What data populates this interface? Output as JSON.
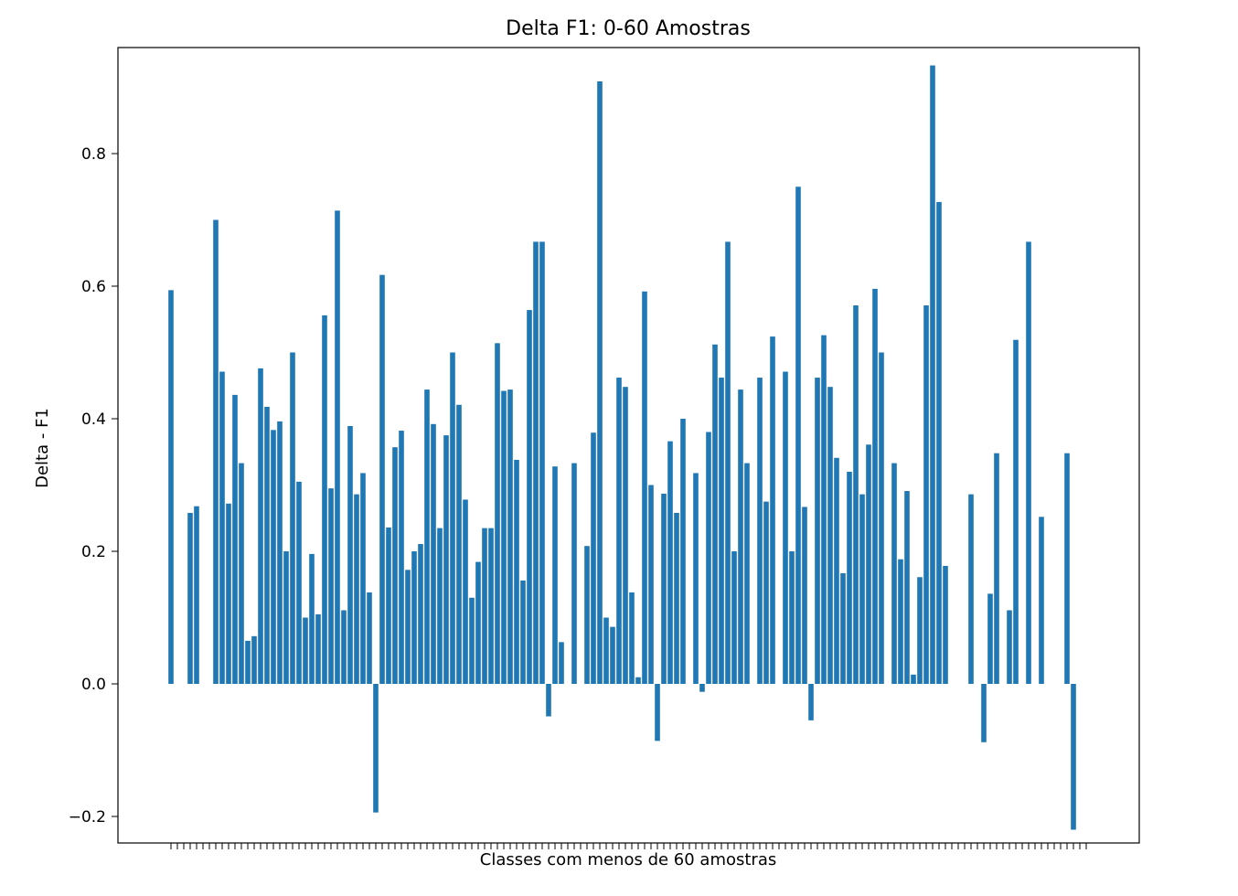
{
  "chart_data": {
    "type": "bar",
    "title": "Delta F1: 0-60 Amostras",
    "xlabel": "Classes com menos de 60 amostras",
    "ylabel": "Delta - F1",
    "ylim": [
      -0.24,
      0.96
    ],
    "yticks": [
      -0.2,
      0.0,
      0.2,
      0.4,
      0.6,
      0.8
    ],
    "ytick_labels": [
      "−0.2",
      "0.0",
      "0.2",
      "0.4",
      "0.6",
      "0.8"
    ],
    "grid": false,
    "legend": "none",
    "bar_color": "#1f77b4",
    "x_tick_count": 144,
    "values": [
      0.594,
      0,
      0,
      0.258,
      0.268,
      0,
      0,
      0.7,
      0.471,
      0.272,
      0.436,
      0.333,
      0.065,
      0.072,
      0.476,
      0.418,
      0.383,
      0.396,
      0.2,
      0.5,
      0.305,
      0.1,
      0.196,
      0.105,
      0.556,
      0.295,
      0.714,
      0.111,
      0.389,
      0.286,
      0.318,
      0.138,
      -0.194,
      0.617,
      0.236,
      0.357,
      0.382,
      0.172,
      0.2,
      0.211,
      0.444,
      0.392,
      0.235,
      0.375,
      0.5,
      0.421,
      0.278,
      0.13,
      0.184,
      0.235,
      0.235,
      0.514,
      0.442,
      0.444,
      0.338,
      0.156,
      0.564,
      0.667,
      0.667,
      -0.049,
      0.328,
      0.063,
      0,
      0.333,
      0,
      0.208,
      0.379,
      0.909,
      0.1,
      0.086,
      0.462,
      0.448,
      0.138,
      0.01,
      0.592,
      0.3,
      -0.086,
      0.287,
      0.366,
      0.258,
      0.4,
      0,
      0.318,
      -0.012,
      0.38,
      0.512,
      0.462,
      0.667,
      0.2,
      0.444,
      0.333,
      0,
      0.462,
      0.275,
      0.524,
      0,
      0.471,
      0.2,
      0.75,
      0.267,
      -0.055,
      0.462,
      0.526,
      0.448,
      0.341,
      0.167,
      0.32,
      0.571,
      0.286,
      0.361,
      0.596,
      0.5,
      0,
      0.333,
      0.188,
      0.291,
      0.014,
      0.161,
      0.571,
      0.933,
      0.727,
      0.178,
      0,
      0,
      0,
      0.286,
      0,
      -0.088,
      0.136,
      0.348,
      0,
      0.111,
      0.519,
      0,
      0.667,
      0,
      0.252,
      0,
      0,
      0,
      0.348,
      -0.22,
      0,
      0
    ]
  }
}
